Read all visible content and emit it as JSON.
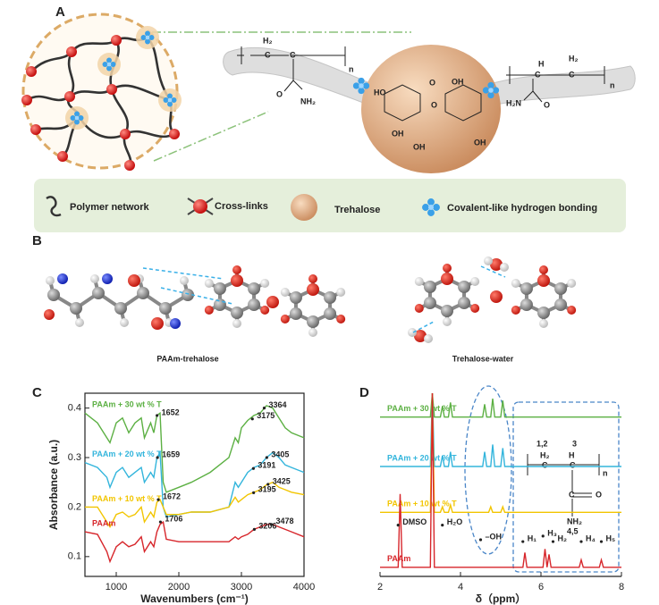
{
  "panel_labels": [
    "A",
    "B",
    "C",
    "D"
  ],
  "scheme": {
    "labels": [
      "H₂",
      "C",
      "C",
      "n",
      "O",
      "NH₂",
      "HO",
      "O",
      "OH",
      "OH",
      "OH",
      "O",
      "OH",
      "H",
      "H₂",
      "C",
      "C",
      "n",
      "H₂N",
      "O"
    ]
  },
  "legend": [
    "Polymer network",
    "Cross-links",
    "Trehalose",
    "Covalent-like hydrogen bonding"
  ],
  "molecules": {
    "captions": [
      "PAAm-trehalose",
      "Trehalose-water"
    ]
  },
  "nmr_structure": {
    "labels": [
      "1,2",
      "3",
      "H₂",
      "H",
      "C",
      "C",
      "n",
      "C",
      "O",
      "NH₂",
      "4,5"
    ]
  },
  "chart_data": [
    {
      "type": "line",
      "x_label": "Wavenumbers (cm⁻¹)",
      "y_label": "Absorbance (a.u.)",
      "xlim": [
        500,
        4000
      ],
      "xticks": [
        1000,
        2000,
        3000,
        4000
      ],
      "ylim": [
        0.06,
        0.43
      ],
      "yticks": [
        0.1,
        0.2,
        0.3,
        0.4
      ],
      "frame": true,
      "x": [
        500,
        700,
        850,
        900,
        1000,
        1100,
        1200,
        1300,
        1400,
        1450,
        1550,
        1600,
        1650,
        1700,
        1750,
        1800,
        2000,
        2200,
        2500,
        2800,
        2900,
        2950,
        3000,
        3100,
        3200,
        3300,
        3400,
        3500,
        3600,
        3700,
        3800,
        4000
      ],
      "series": [
        {
          "name": "PAAm + 30 wt % T",
          "color": "#5cb043",
          "values": [
            0.39,
            0.37,
            0.34,
            0.33,
            0.37,
            0.38,
            0.35,
            0.37,
            0.38,
            0.34,
            0.37,
            0.35,
            0.385,
            0.39,
            0.25,
            0.23,
            0.24,
            0.25,
            0.27,
            0.3,
            0.34,
            0.33,
            0.36,
            0.375,
            0.385,
            0.39,
            0.405,
            0.4,
            0.38,
            0.36,
            0.35,
            0.34
          ]
        },
        {
          "name": "PAAm + 20 wt % T",
          "color": "#33b5dc",
          "values": [
            0.29,
            0.28,
            0.26,
            0.24,
            0.27,
            0.28,
            0.26,
            0.27,
            0.28,
            0.25,
            0.27,
            0.26,
            0.3,
            0.31,
            0.2,
            0.18,
            0.185,
            0.19,
            0.19,
            0.2,
            0.25,
            0.24,
            0.25,
            0.27,
            0.28,
            0.285,
            0.3,
            0.31,
            0.3,
            0.285,
            0.28,
            0.27
          ]
        },
        {
          "name": "PAAm + 10 wt % T",
          "color": "#f2c500",
          "values": [
            0.2,
            0.2,
            0.17,
            0.16,
            0.185,
            0.19,
            0.18,
            0.185,
            0.2,
            0.17,
            0.19,
            0.18,
            0.21,
            0.215,
            0.2,
            0.185,
            0.185,
            0.19,
            0.19,
            0.2,
            0.22,
            0.21,
            0.215,
            0.225,
            0.23,
            0.235,
            0.245,
            0.25,
            0.24,
            0.235,
            0.23,
            0.225
          ]
        },
        {
          "name": "PAAm",
          "color": "#d7262b",
          "values": [
            0.15,
            0.145,
            0.11,
            0.09,
            0.12,
            0.13,
            0.12,
            0.125,
            0.14,
            0.11,
            0.13,
            0.12,
            0.15,
            0.165,
            0.17,
            0.135,
            0.13,
            0.13,
            0.13,
            0.13,
            0.14,
            0.135,
            0.14,
            0.145,
            0.155,
            0.16,
            0.165,
            0.165,
            0.16,
            0.155,
            0.15,
            0.14
          ]
        }
      ],
      "annotations": [
        {
          "text": "1652",
          "x": 1652,
          "y": 0.385
        },
        {
          "text": "1659",
          "x": 1659,
          "y": 0.3
        },
        {
          "text": "1672",
          "x": 1672,
          "y": 0.215
        },
        {
          "text": "1706",
          "x": 1706,
          "y": 0.17
        },
        {
          "text": "3175",
          "x": 3175,
          "y": 0.378
        },
        {
          "text": "3191",
          "x": 3191,
          "y": 0.278
        },
        {
          "text": "3195",
          "x": 3195,
          "y": 0.229
        },
        {
          "text": "3206",
          "x": 3206,
          "y": 0.155
        },
        {
          "text": "3364",
          "x": 3364,
          "y": 0.4
        },
        {
          "text": "3405",
          "x": 3405,
          "y": 0.3
        },
        {
          "text": "3425",
          "x": 3425,
          "y": 0.246
        },
        {
          "text": "3478",
          "x": 3478,
          "y": 0.165
        }
      ]
    },
    {
      "type": "line",
      "x_label": "δ（ppm）",
      "xlim": [
        2,
        8
      ],
      "xticks": [
        2,
        4,
        6,
        8
      ],
      "ylim": [
        0,
        10
      ],
      "frame": false,
      "series": [
        {
          "name": "PAAm + 30 wt % T",
          "color": "#5cb043",
          "x": [
            2,
            3.25,
            3.3,
            3.35,
            3.5,
            3.55,
            3.6,
            3.7,
            3.75,
            3.8,
            4.55,
            4.6,
            4.65,
            4.75,
            4.8,
            4.85,
            5.0,
            5.05,
            5.1,
            8
          ],
          "values": [
            8.7,
            8.7,
            10,
            8.7,
            8.7,
            9.3,
            8.7,
            8.7,
            9.5,
            8.7,
            8.7,
            9.4,
            8.7,
            8.7,
            9.7,
            8.7,
            8.7,
            9.6,
            8.7,
            8.7
          ]
        },
        {
          "name": "PAAm + 20 wt % T",
          "color": "#33b5dc",
          "x": [
            2,
            3.25,
            3.3,
            3.35,
            3.5,
            3.55,
            3.6,
            3.7,
            3.75,
            3.8,
            4.55,
            4.6,
            4.65,
            4.75,
            4.8,
            4.85,
            5.0,
            5.05,
            5.1,
            8
          ],
          "values": [
            6,
            6,
            10,
            6,
            6,
            6.6,
            6,
            6,
            6.8,
            6,
            6,
            6.8,
            6,
            6,
            7.2,
            6,
            6,
            7,
            6,
            6
          ]
        },
        {
          "name": "PAAm + 10 wt % T",
          "color": "#f2c500",
          "x": [
            2,
            3.25,
            3.3,
            3.35,
            3.5,
            3.55,
            3.6,
            3.7,
            3.75,
            3.8,
            4.7,
            4.75,
            4.8,
            5.0,
            5.05,
            5.1,
            8
          ],
          "values": [
            3.5,
            3.5,
            10,
            3.5,
            3.5,
            3.8,
            3.5,
            3.5,
            3.9,
            3.5,
            3.5,
            3.8,
            3.5,
            3.5,
            3.8,
            3.5,
            3.5
          ]
        },
        {
          "name": "PAAm",
          "color": "#d7262b",
          "x": [
            2,
            2.45,
            2.5,
            2.55,
            3.25,
            3.3,
            3.35,
            5.55,
            5.6,
            5.65,
            6.05,
            6.1,
            6.15,
            6.2,
            6.25,
            6.95,
            7.0,
            7.05,
            7.45,
            7.5,
            7.55,
            8
          ],
          "values": [
            0.5,
            0.5,
            4.5,
            0.5,
            0.5,
            10,
            0.5,
            0.5,
            1.3,
            0.5,
            0.5,
            1.5,
            0.5,
            1.2,
            0.5,
            0.5,
            0.9,
            0.5,
            0.5,
            0.9,
            0.5,
            0.5
          ]
        }
      ],
      "annotations": [
        {
          "text": "DMSO",
          "x": 2.45,
          "y": 2.8
        },
        {
          "text": "H₂O",
          "x": 3.55,
          "y": 2.8
        },
        {
          "text": "–OH",
          "x": 4.5,
          "y": 2.0
        },
        {
          "text": "H₁",
          "x": 5.55,
          "y": 1.9
        },
        {
          "text": "H₃",
          "x": 6.05,
          "y": 2.2
        },
        {
          "text": "H₂",
          "x": 6.3,
          "y": 1.9
        },
        {
          "text": "H₄",
          "x": 7.0,
          "y": 1.9
        },
        {
          "text": "H₅",
          "x": 7.5,
          "y": 1.9
        }
      ]
    }
  ]
}
